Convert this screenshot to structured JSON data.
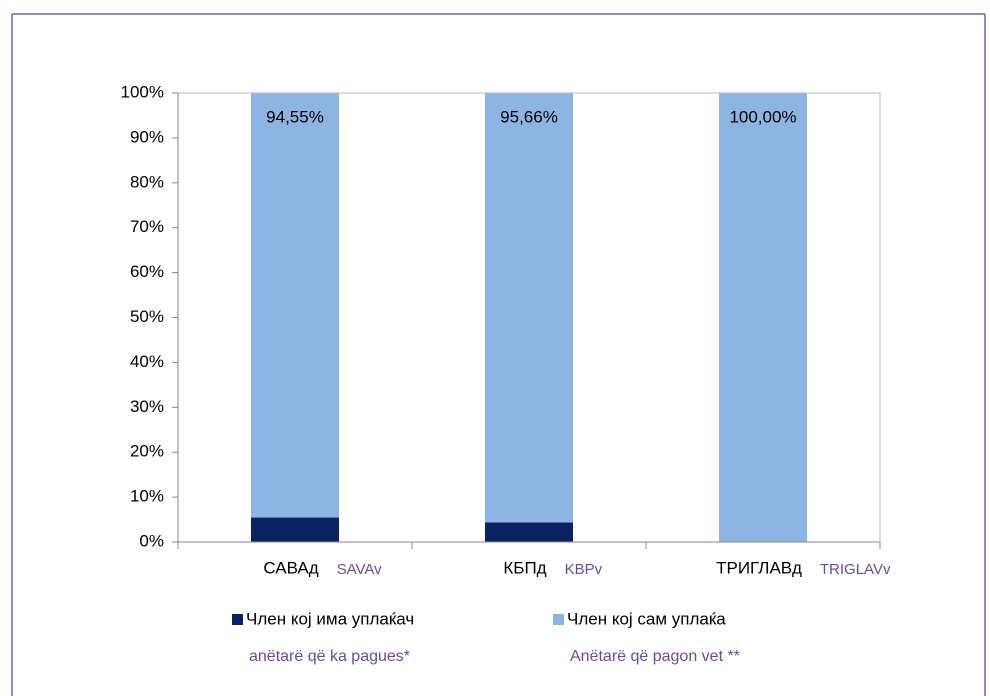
{
  "chart_data": {
    "type": "stacked_bar",
    "categories": [
      "САВАд",
      "КБПд",
      "ТРИГЛАВд"
    ],
    "category_translations": [
      "SAVAv",
      "KBPv",
      "TRIGLAVv"
    ],
    "series": [
      {
        "name": "Член кој има уплаќач",
        "translation": "anëtarë që ka pagues*",
        "color": "#0b2461",
        "values": [
          5.45,
          4.34,
          0
        ],
        "value_labels": [
          "5,45%",
          "4,34%",
          "0,00%"
        ]
      },
      {
        "name": "Член кој сам уплаќа",
        "translation": "Anëtarë që pagon vet **",
        "color": "#8eb4e3",
        "values": [
          94.55,
          95.66,
          100
        ],
        "value_labels": [
          "94,55%",
          "95,66%",
          "100,00%"
        ]
      }
    ],
    "ylim": [
      0,
      100
    ],
    "yticks": [
      {
        "value": 0,
        "label": "0%"
      },
      {
        "value": 10,
        "label": "10%"
      },
      {
        "value": 20,
        "label": "20%"
      },
      {
        "value": 30,
        "label": "30%"
      },
      {
        "value": 40,
        "label": "40%"
      },
      {
        "value": 50,
        "label": "50%"
      },
      {
        "value": 60,
        "label": "60%"
      },
      {
        "value": 70,
        "label": "70%"
      },
      {
        "value": 80,
        "label": "80%"
      },
      {
        "value": 90,
        "label": "90%"
      },
      {
        "value": 100,
        "label": "100%"
      }
    ],
    "grid": false,
    "legend": "bottom"
  }
}
